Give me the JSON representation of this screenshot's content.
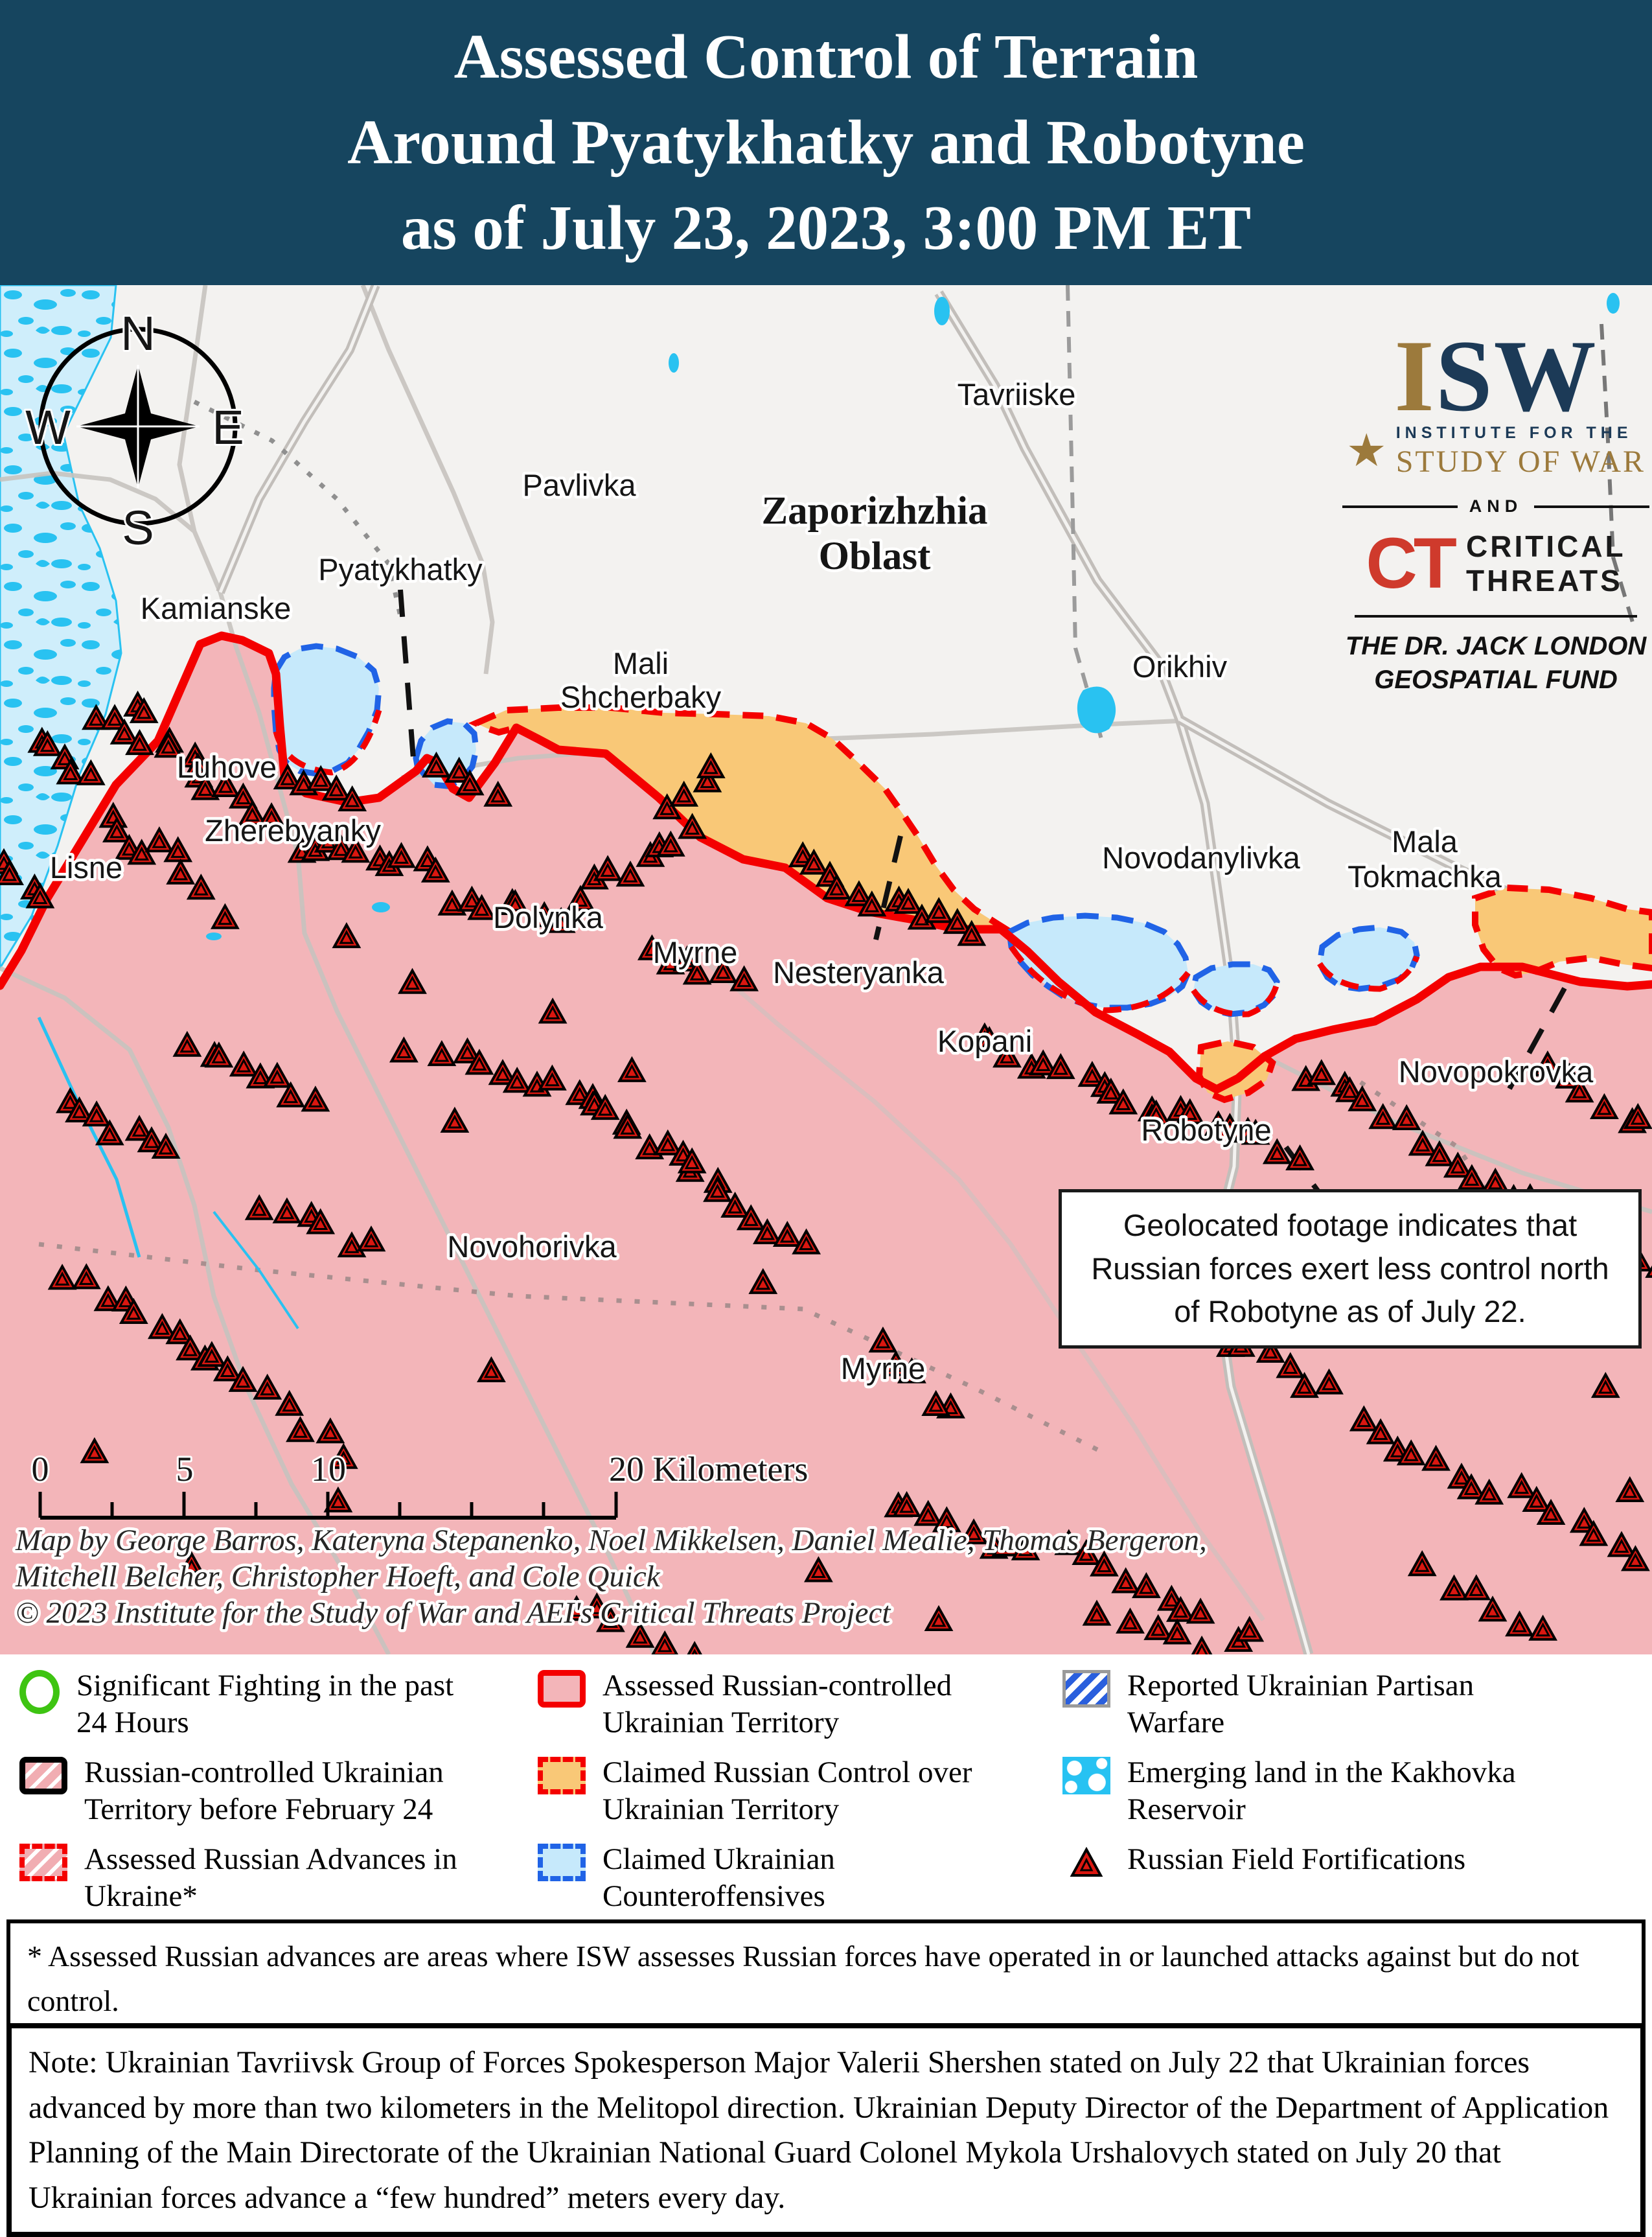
{
  "colors": {
    "header_bg": "#16455f",
    "header_text": "#ffffff",
    "map_bg": "#f3f2f0",
    "russian_controlled": "#f3b5b9",
    "claimed_russian": "#f9c877",
    "claimed_ukrainian": "#c6e9fb",
    "contact_line": "#f40000",
    "counteroffensive_border": "#2063e6",
    "water": "#29c2f1",
    "water_light": "#cfeefb",
    "fortification": "#da1710",
    "road": "#c7c3bf",
    "label": "#161616",
    "accent_gold": "#9c7a3c",
    "navy": "#1c3a57",
    "ct_red": "#cf3a2c"
  },
  "header": {
    "title_line1": "Assessed Control of Terrain",
    "title_line2": "Around Pyatykhatky and Robotyne",
    "title_line3": "as of July 23, 2023, 3:00 PM ET"
  },
  "logo": {
    "isw_i": "I",
    "isw_sw": "SW",
    "star": "★",
    "institute": "INSTITUTE FOR THE",
    "study": "STUDY OF WAR",
    "and": "AND",
    "ct": "CT",
    "critical": "CRITICAL",
    "threats": "THREATS",
    "fund_line1": "THE DR. JACK LONDON",
    "fund_line2": "GEOSPATIAL FUND"
  },
  "map": {
    "compass": {
      "n": "N",
      "e": "E",
      "s": "S",
      "w": "W"
    },
    "region_line1": "Zaporizhzhia",
    "region_line2": "Oblast",
    "places": {
      "tavriiske": "Tavriiske",
      "pavlivka": "Pavlivka",
      "pyatykhatky": "Pyatykhatky",
      "kamianske": "Kamianske",
      "mali_1": "Mali",
      "mali_2": "Shcherbaky",
      "orikhiv": "Orikhiv",
      "luhove": "Luhove",
      "zherebyanky": "Zherebyanky",
      "lisne": "Lisne",
      "dolynka": "Dolynka",
      "myrne_north": "Myrne",
      "nesteryanka": "Nesteryanka",
      "novodanylivka": "Novodanylivka",
      "mala_tokmachka_1": "Mala",
      "mala_tokmachka_2": "Tokmachka",
      "kopani": "Kopani",
      "novopokrovka": "Novopokrovka",
      "robotyne": "Robotyne",
      "novohorivka": "Novohorivka",
      "myrne_south": "Myrne"
    },
    "annotation": "Geolocated footage indicates that Russian forces exert less control north of Robotyne as of July 22.",
    "scale": {
      "t0": "0",
      "t5": "5",
      "t10": "10",
      "t20": "20 Kilometers"
    },
    "credits_line1": "Map by George Barros, Kateryna Stepanenko, Noel Mikkelsen, Daniel Mealie, Thomas Bergeron,",
    "credits_line2": "Mitchell Belcher, Christopher Hoeft, and Cole Quick",
    "credits_line3": "© 2023 Institute for the Study of War and AEI's Critical Threats Project"
  },
  "legend": {
    "items": [
      {
        "id": "fighting",
        "label": "Significant Fighting in the past 24 Hours"
      },
      {
        "id": "assessed",
        "label": "Assessed Russian-controlled Ukrainian Territory"
      },
      {
        "id": "partisan",
        "label": "Reported Ukrainian Partisan Warfare"
      },
      {
        "id": "pre_feb",
        "label": "Russian-controlled Ukrainian Territory before February 24"
      },
      {
        "id": "claimed_russian",
        "label": "Claimed Russian Control over Ukrainian Territory"
      },
      {
        "id": "emerging",
        "label": "Emerging land in the Kakhovka Reservoir"
      },
      {
        "id": "advances",
        "label": "Assessed Russian Advances in Ukraine*"
      },
      {
        "id": "claimed_ukrainian",
        "label": "Claimed Ukrainian Counteroffensives"
      },
      {
        "id": "fortifications",
        "label": "Russian Field Fortifications"
      }
    ]
  },
  "footnote": "* Assessed Russian advances are areas where ISW assesses Russian forces have operated in or launched attacks against but do not control.",
  "note": "Note: Ukrainian Tavriivsk Group of Forces Spokesperson Major Valerii Shershen stated on July 22 that Ukrainian forces advanced by more than two kilometers in the Melitopol direction. Ukrainian Deputy Director of the Department of Application Planning of the Main Directorate of the Ukrainian National Guard Colonel Mykola Urshalovych stated on July 20 that Ukrainian forces advance a “few hundred” meters every day."
}
